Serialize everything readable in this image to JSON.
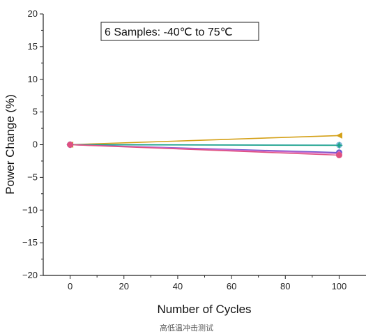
{
  "chart_data": {
    "type": "line",
    "xlabel": "Number of Cycles",
    "ylabel": "Power Change (%)",
    "xlim": [
      -10,
      110
    ],
    "ylim": [
      -20,
      20
    ],
    "x_ticks": [
      0,
      20,
      40,
      60,
      80,
      100
    ],
    "y_ticks": [
      20,
      15,
      10,
      5,
      0,
      -5,
      -10,
      -15,
      -20
    ],
    "annotation": "6 Samples: -40℃ to 75℃",
    "grid": false,
    "series": [
      {
        "x": [
          0,
          100
        ],
        "y": [
          0,
          1.4
        ],
        "color": "#d4a017",
        "marker": "left-triangle"
      },
      {
        "x": [
          0,
          100
        ],
        "y": [
          0,
          -0.05
        ],
        "color": "#7fb8d8",
        "marker": "circle"
      },
      {
        "x": [
          0,
          100
        ],
        "y": [
          0,
          -0.1
        ],
        "color": "#1aa38a",
        "marker": "star"
      },
      {
        "x": [
          0,
          100
        ],
        "y": [
          0,
          -1.2
        ],
        "color": "#6a5acd",
        "marker": "circle"
      },
      {
        "x": [
          0,
          100
        ],
        "y": [
          0,
          -1.35
        ],
        "color": "#cc66cc",
        "marker": "diamond"
      },
      {
        "x": [
          0,
          100
        ],
        "y": [
          0,
          -1.6
        ],
        "color": "#e05080",
        "marker": "circle"
      }
    ]
  },
  "caption": "高低温冲击测试"
}
